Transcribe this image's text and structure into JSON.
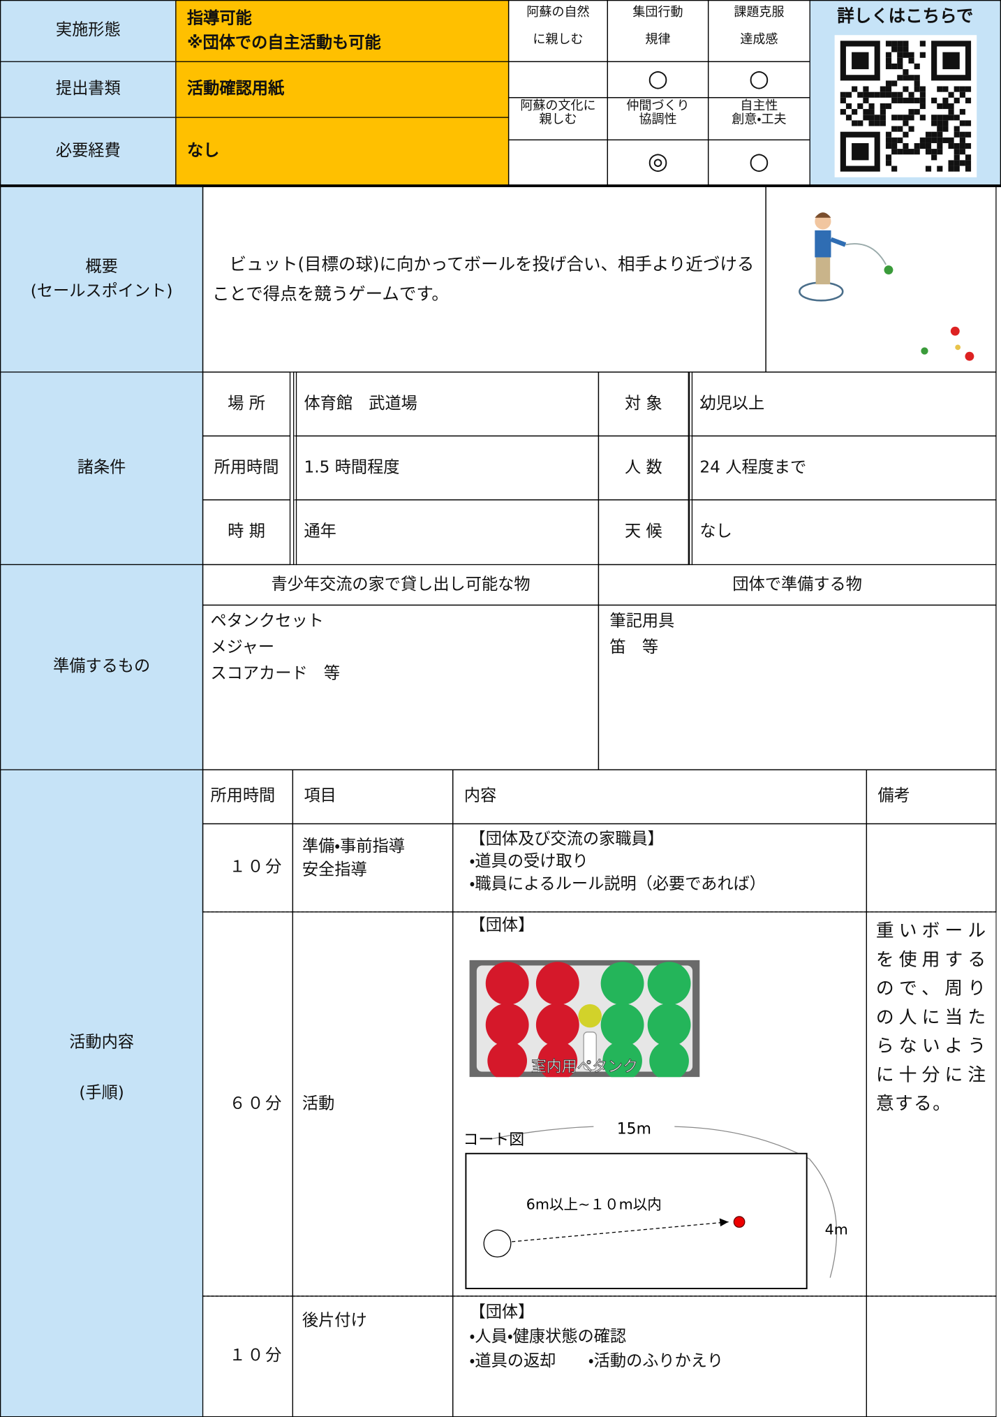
{
  "header": {
    "rows": [
      {
        "label": "実施形態",
        "value": [
          "指導可能",
          "※団体での自主活動も可能"
        ]
      },
      {
        "label": "提出書類",
        "value": [
          "活動確認用紙"
        ]
      },
      {
        "label": "必要経費",
        "value": [
          "なし"
        ]
      }
    ],
    "goals": [
      {
        "title": [
          "阿蘇の自然",
          "に親しむ"
        ]
      },
      {
        "title": [
          "集団行動",
          "規律"
        ],
        "mark": "○"
      },
      {
        "title": [
          "課題克服",
          "達成感"
        ],
        "mark": "○"
      },
      {
        "title": [
          "阿蘇の文化に",
          "親しむ"
        ]
      },
      {
        "title": [
          "仲間づくり",
          "協調性"
        ],
        "mark": "◎"
      },
      {
        "title": [
          "自主性",
          "創意・工夫"
        ],
        "mark": "○"
      }
    ],
    "qr_caption": "詳しくはこちらで"
  },
  "overview": {
    "label": [
      "概要",
      "(セールスポイント)"
    ],
    "text": "　ビュット(目標の球)に向かってボールを投げ合い、相手より近づけることで得点を競うゲームです。"
  },
  "conditions": {
    "label": "諸条件",
    "rows": [
      [
        "場 所",
        "体育館　武道場",
        "対 象",
        "幼児以上"
      ],
      [
        "所用時間",
        "1.5 時間程度",
        "人 数",
        "24 人程度まで"
      ],
      [
        "時 期",
        "通年",
        "天 候",
        "なし"
      ]
    ]
  },
  "preparation": {
    "label": "準備するもの",
    "lend_header": "青少年交流の家で貸し出し可能な物",
    "lend_items": [
      "ペタンクセット",
      "メジャー",
      "スコアカード　等"
    ],
    "bring_header": "団体で準備する物",
    "bring_items": [
      "筆記用具",
      "笛　等"
    ]
  },
  "activities": {
    "label": [
      "活動内容",
      "(手順)"
    ],
    "headers": [
      "所用時間",
      "項目",
      "内容",
      "備考"
    ],
    "rows": [
      {
        "time": "１０分",
        "item": [
          "準備・事前指導",
          "安全指導"
        ],
        "content": [
          "【団体及び交流の家職員】",
          "・道具の受け取り",
          "・職員によるルール説明（必要であれば）"
        ]
      },
      {
        "time": "６０分",
        "item": [
          "活動"
        ],
        "content": [
          "【団体】"
        ],
        "note": "重いボールを使用するので、周りの人に当たらないように十分に注意する。"
      },
      {
        "time": "１０分",
        "item": [
          "後片付け"
        ],
        "content": [
          "【団体】",
          "・人員・健康状態の確認",
          "・道具の返却　　・活動のふりかえり"
        ]
      }
    ],
    "photo_caption": "室内用ペタンク",
    "court": {
      "title": "コート図",
      "length": "15m",
      "distance": "6m以上~１０m以内",
      "width": "4m"
    }
  }
}
